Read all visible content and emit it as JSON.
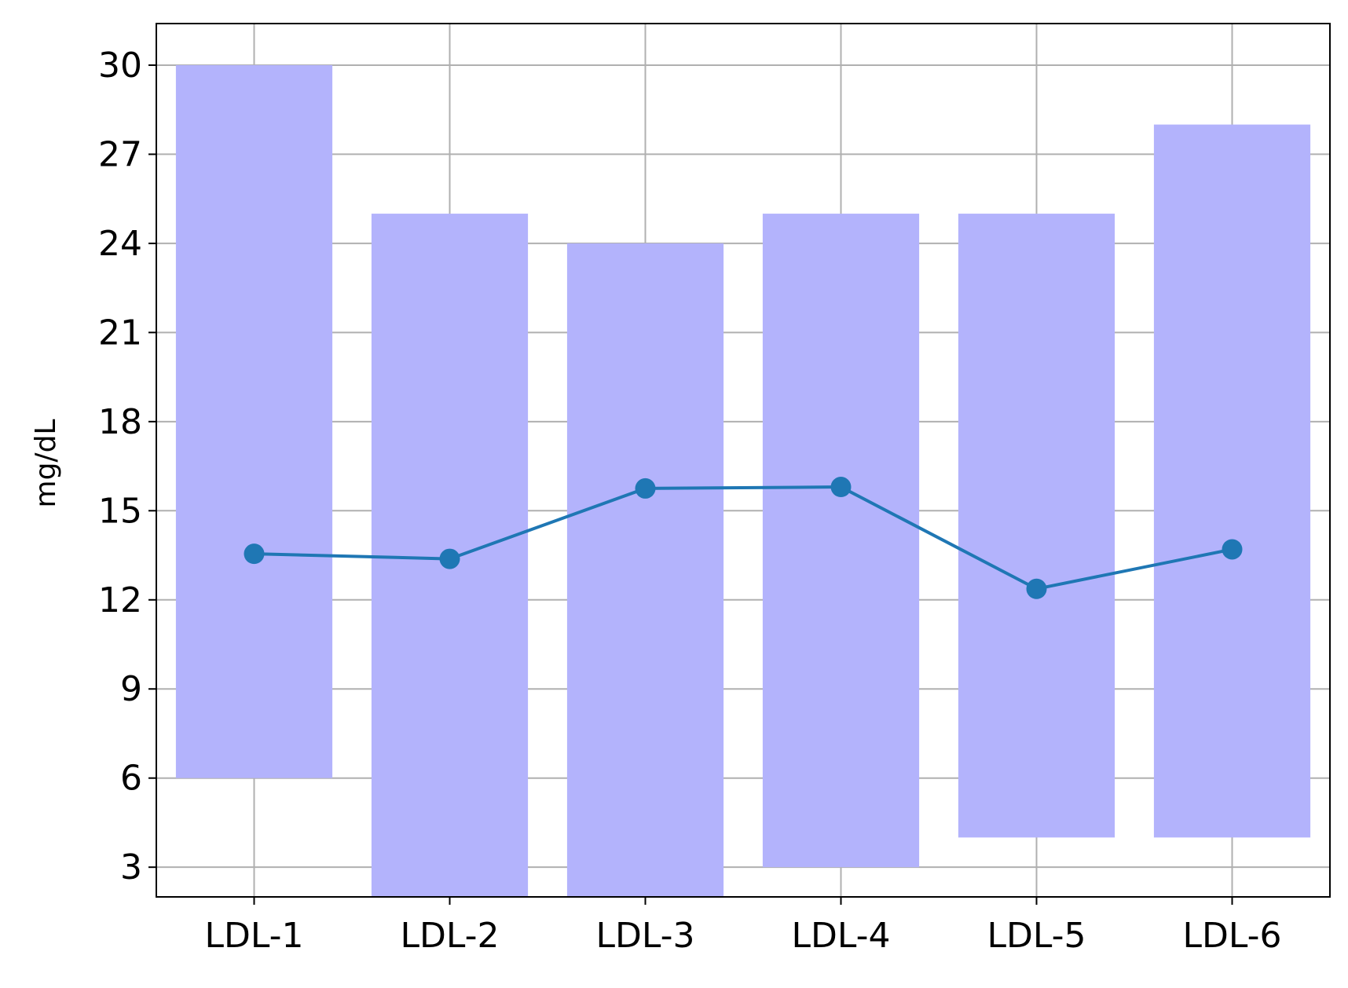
{
  "chart_data": {
    "type": "bar",
    "title": "",
    "xlabel": "",
    "ylabel": "mg/dL",
    "categories": [
      "LDL-1",
      "LDL-2",
      "LDL-3",
      "LDL-4",
      "LDL-5",
      "LDL-6"
    ],
    "range_bars": {
      "low": [
        6,
        2,
        2,
        3,
        4,
        4
      ],
      "high": [
        30,
        25,
        24,
        25,
        25,
        28
      ]
    },
    "series": [
      {
        "values": [
          13.55,
          13.38,
          15.75,
          15.8,
          12.37,
          13.7
        ]
      }
    ],
    "yticks": [
      3,
      6,
      9,
      12,
      15,
      18,
      21,
      24,
      27,
      30
    ],
    "ylim": [
      2,
      31.4
    ],
    "grid": true,
    "legend": "none",
    "colors": {
      "bar": "#b3b3fc",
      "line": "#1f77b4",
      "grid": "#b0b0b0",
      "axes": "#000000"
    }
  }
}
